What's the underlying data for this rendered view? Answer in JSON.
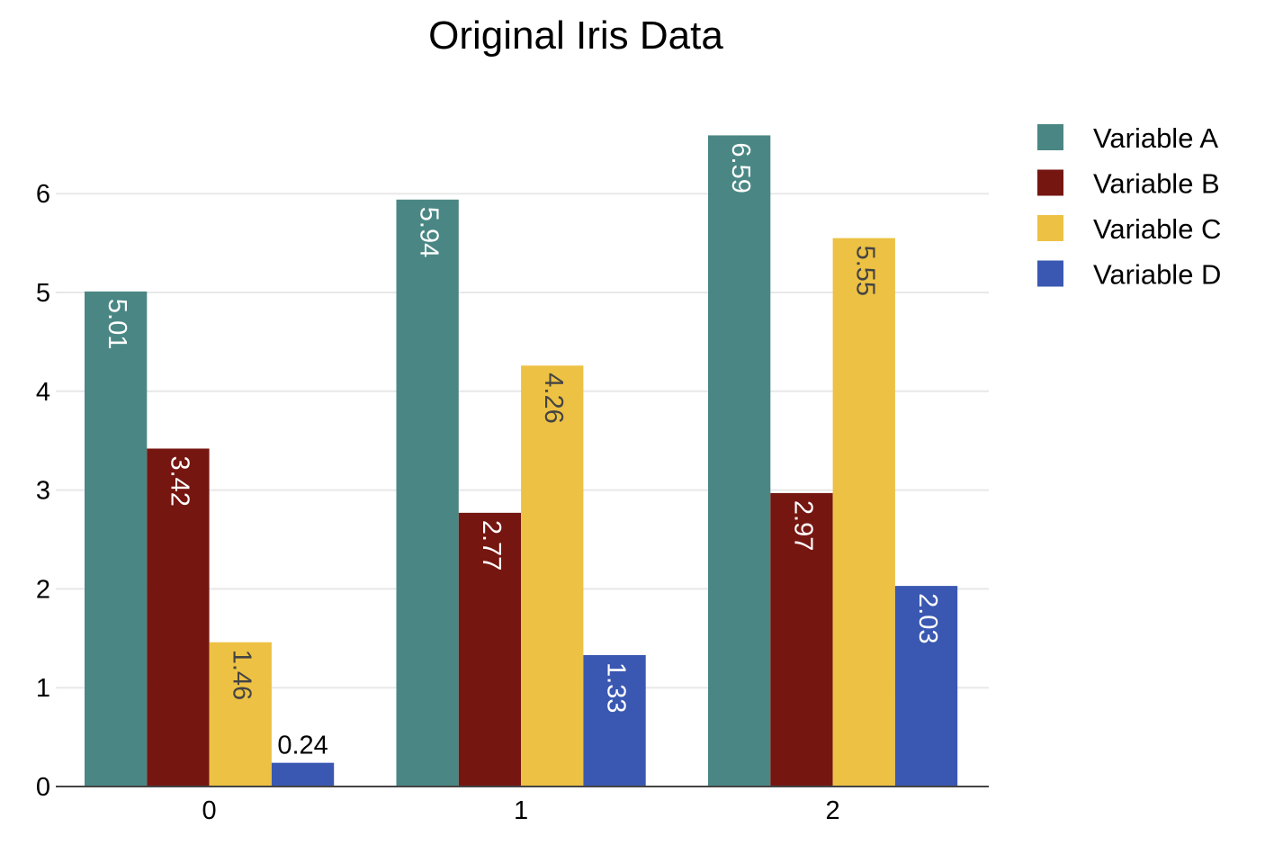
{
  "chart_data": {
    "type": "bar",
    "title": "Original Iris Data",
    "xlabel": "",
    "ylabel": "",
    "categories": [
      "0",
      "1",
      "2"
    ],
    "ylim": [
      0,
      6.6
    ],
    "yticks": [
      "0",
      "1",
      "2",
      "3",
      "4",
      "5",
      "6"
    ],
    "grid": true,
    "legend_position": "top-right",
    "series": [
      {
        "name": "Variable A",
        "color": "#4a8784",
        "values": [
          5.01,
          5.94,
          6.59
        ],
        "labels": [
          "5.01",
          "5.94",
          "6.59"
        ]
      },
      {
        "name": "Variable B",
        "color": "#761611",
        "values": [
          3.42,
          2.77,
          2.97
        ],
        "labels": [
          "3.42",
          "2.77",
          "2.97"
        ]
      },
      {
        "name": "Variable C",
        "color": "#edc143",
        "values": [
          1.46,
          4.26,
          5.55
        ],
        "labels": [
          "1.46",
          "4.26",
          "5.55"
        ]
      },
      {
        "name": "Variable D",
        "color": "#3a58b2",
        "values": [
          0.24,
          1.33,
          2.03
        ],
        "labels": [
          "0.24",
          "1.33",
          "2.03"
        ]
      }
    ]
  }
}
